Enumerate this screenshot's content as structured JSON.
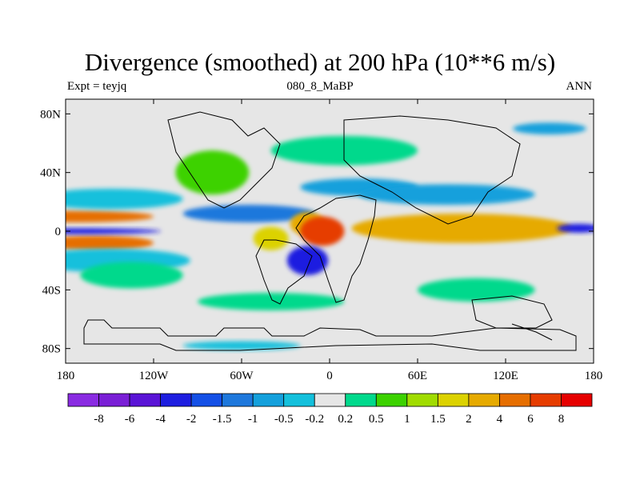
{
  "title": "Divergence (smoothed) at 200 hPa (10**6 m/s)",
  "subtitle_left": "Expt = teyjq",
  "subtitle_center": "080_8_MaBP",
  "subtitle_right": "ANN",
  "colors": {
    "background_field": "#e6e6e6",
    "coast": "#000000"
  },
  "chart_data": {
    "type": "heatmap",
    "title": "Divergence (smoothed) at 200 hPa (10**6 m/s)",
    "x_range": [
      -180,
      180
    ],
    "y_range": [
      -90,
      90
    ],
    "x_ticks": [
      {
        "value": -180,
        "label": "180"
      },
      {
        "value": -120,
        "label": "120W"
      },
      {
        "value": -60,
        "label": "60W"
      },
      {
        "value": 0,
        "label": "0"
      },
      {
        "value": 60,
        "label": "60E"
      },
      {
        "value": 120,
        "label": "120E"
      },
      {
        "value": 180,
        "label": "180"
      }
    ],
    "y_ticks": [
      {
        "value": 80,
        "label": "80N"
      },
      {
        "value": 40,
        "label": "40N"
      },
      {
        "value": 0,
        "label": "0"
      },
      {
        "value": -40,
        "label": "40S"
      },
      {
        "value": -80,
        "label": "80S"
      }
    ],
    "colorbar": {
      "colors": [
        "#8a2be2",
        "#7a1fd6",
        "#5a14d6",
        "#1e1ee0",
        "#1450e6",
        "#1e78dc",
        "#14a0dc",
        "#14c0dc",
        "#e6e6e6",
        "#00d98c",
        "#3cd200",
        "#a0dc00",
        "#dcd200",
        "#e6aa00",
        "#e66e00",
        "#e63c00",
        "#e60000"
      ],
      "boundaries": [
        "-8",
        "-6",
        "-4",
        "-2",
        "-1.5",
        "-1",
        "-0.5",
        "-0.2",
        "0.2",
        "0.5",
        "1",
        "1.5",
        "2",
        "4",
        "6",
        "8"
      ]
    },
    "fields": [
      {
        "lon": -175,
        "lat": 10,
        "rx": 55,
        "ry": 4,
        "level": 14
      },
      {
        "lon": -160,
        "lat": -8,
        "rx": 40,
        "ry": 5,
        "level": 14
      },
      {
        "lon": -175,
        "lat": 0,
        "rx": 60,
        "ry": 2,
        "level": 3
      },
      {
        "lon": -150,
        "lat": 22,
        "rx": 50,
        "ry": 7,
        "level": 7
      },
      {
        "lon": -150,
        "lat": -20,
        "rx": 55,
        "ry": 8,
        "level": 7
      },
      {
        "lon": -135,
        "lat": -30,
        "rx": 35,
        "ry": 9,
        "level": 9
      },
      {
        "lon": -80,
        "lat": 40,
        "rx": 25,
        "ry": 15,
        "level": 10
      },
      {
        "lon": -55,
        "lat": 12,
        "rx": 45,
        "ry": 6,
        "level": 5
      },
      {
        "lon": -40,
        "lat": -5,
        "rx": 12,
        "ry": 8,
        "level": 12
      },
      {
        "lon": -15,
        "lat": 5,
        "rx": 12,
        "ry": 8,
        "level": 13
      },
      {
        "lon": -5,
        "lat": 0,
        "rx": 15,
        "ry": 10,
        "level": 15
      },
      {
        "lon": -15,
        "lat": -20,
        "rx": 14,
        "ry": 10,
        "level": 3
      },
      {
        "lon": 10,
        "lat": 55,
        "rx": 50,
        "ry": 10,
        "level": 9
      },
      {
        "lon": 20,
        "lat": 30,
        "rx": 40,
        "ry": 6,
        "level": 6
      },
      {
        "lon": 90,
        "lat": 2,
        "rx": 75,
        "ry": 10,
        "level": 13
      },
      {
        "lon": 80,
        "lat": 25,
        "rx": 60,
        "ry": 7,
        "level": 6
      },
      {
        "lon": 170,
        "lat": 2,
        "rx": 15,
        "ry": 3,
        "level": 3
      },
      {
        "lon": 100,
        "lat": -40,
        "rx": 40,
        "ry": 8,
        "level": 9
      },
      {
        "lon": -40,
        "lat": -48,
        "rx": 50,
        "ry": 6,
        "level": 9
      },
      {
        "lon": -60,
        "lat": -78,
        "rx": 40,
        "ry": 3,
        "level": 7
      },
      {
        "lon": 150,
        "lat": 70,
        "rx": 25,
        "ry": 4,
        "level": 6
      }
    ]
  }
}
